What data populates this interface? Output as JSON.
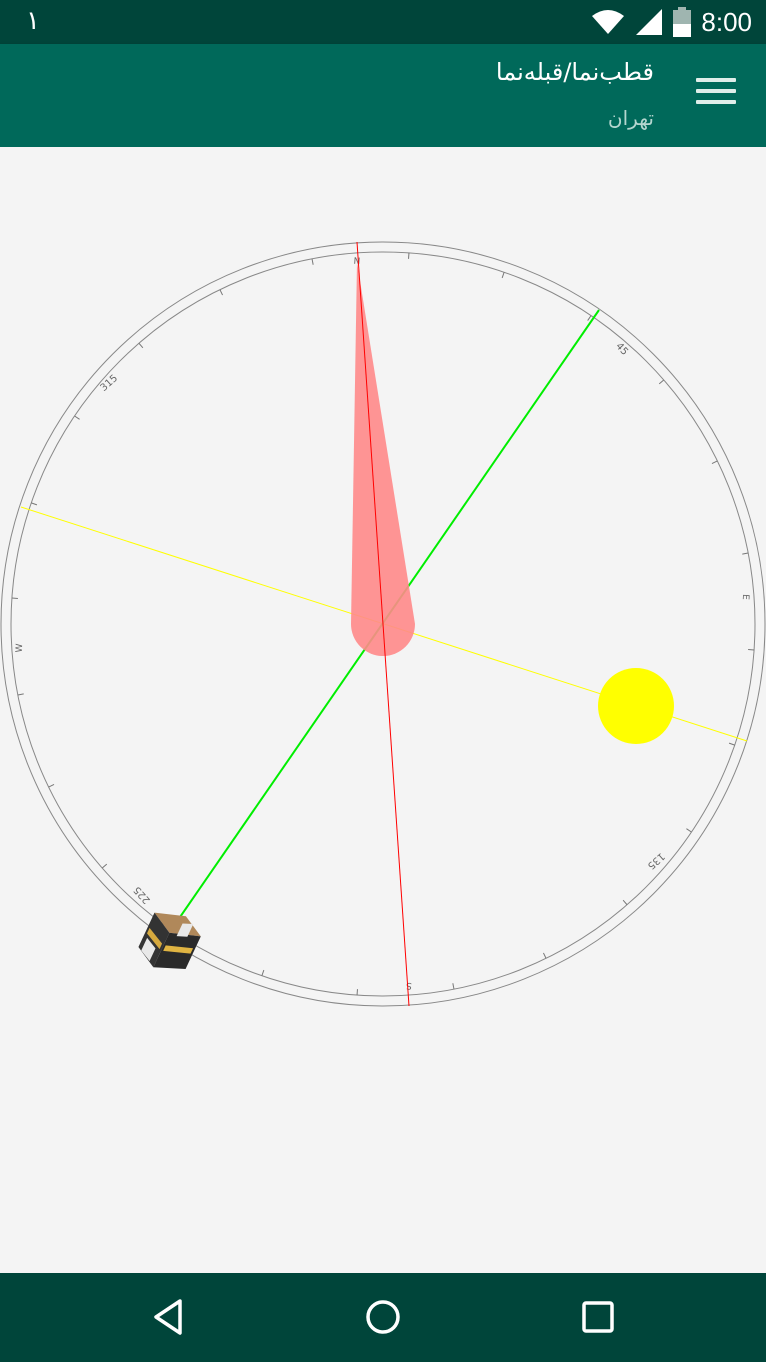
{
  "status_bar": {
    "notification_text": "۱",
    "time": "8:00",
    "icons": [
      "wifi-icon",
      "signal-icon",
      "battery-icon"
    ]
  },
  "app_bar": {
    "title": "قطب‌نما/قبله‌نما",
    "subtitle": "تهران",
    "menu_icon": "hamburger-menu-icon"
  },
  "compass": {
    "labels": {
      "north": "N",
      "east": "E",
      "south": "S",
      "west": "W",
      "deg45": "45",
      "deg135": "135",
      "deg225": "225",
      "deg315": "315"
    },
    "colors": {
      "needle": "#ff8a8a",
      "north_line": "#ff0000",
      "qibla_line": "#00ee00",
      "sun_line": "#ffff00",
      "sun": "#ffff00",
      "ring": "#888888"
    },
    "qibla_icon": "kaaba-icon",
    "sun_icon": "sun-icon"
  },
  "nav_bar": {
    "back": "back-icon",
    "home": "home-icon",
    "recents": "recents-icon"
  }
}
